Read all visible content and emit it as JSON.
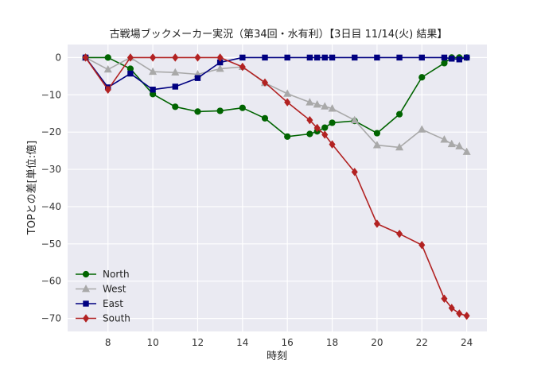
{
  "chart_data": {
    "type": "line",
    "title": "古戦場ブックメーカー実況（第34回・水有利）【3日目 11/14(火) 結果】",
    "xlabel": "時刻",
    "ylabel": "TOPとの差[単位:億]",
    "xlim": [
      6.2,
      24.9
    ],
    "ylim": [
      -73.5,
      3.5
    ],
    "xticks": [
      8,
      10,
      12,
      14,
      16,
      18,
      20,
      22,
      24
    ],
    "yticks": [
      0,
      -10,
      -20,
      -30,
      -40,
      -50,
      -60,
      -70
    ],
    "grid": true,
    "legend_position": "lower-left",
    "series": [
      {
        "name": "North",
        "color": "#006400",
        "marker": "circle",
        "points": [
          [
            7,
            0
          ],
          [
            8,
            0
          ],
          [
            9,
            -3
          ],
          [
            10,
            -9.8
          ],
          [
            11,
            -13.2
          ],
          [
            12,
            -14.5
          ],
          [
            13,
            -14.3
          ],
          [
            14,
            -13.5
          ],
          [
            15,
            -16.3
          ],
          [
            16,
            -21.2
          ],
          [
            17,
            -20.5
          ],
          [
            17.33,
            -19.8
          ],
          [
            17.67,
            -18.8
          ],
          [
            18,
            -17.5
          ],
          [
            19,
            -17
          ],
          [
            20,
            -20.3
          ],
          [
            21,
            -15.2
          ],
          [
            22,
            -5.3
          ],
          [
            23,
            -1.5
          ],
          [
            23.33,
            0
          ],
          [
            23.67,
            0
          ],
          [
            24,
            0
          ]
        ]
      },
      {
        "name": "West",
        "color": "#a9a9a9",
        "marker": "triangle",
        "points": [
          [
            7,
            0
          ],
          [
            8,
            -3.2
          ],
          [
            9,
            0
          ],
          [
            10,
            -3.8
          ],
          [
            11,
            -4
          ],
          [
            12,
            -4.5
          ],
          [
            13,
            -3
          ],
          [
            14,
            -2.5
          ],
          [
            15,
            -6.8
          ],
          [
            16,
            -9.7
          ],
          [
            17,
            -12
          ],
          [
            17.33,
            -12.6
          ],
          [
            17.67,
            -13.1
          ],
          [
            18,
            -13.7
          ],
          [
            19,
            -16.8
          ],
          [
            20,
            -23.5
          ],
          [
            21,
            -24.1
          ],
          [
            22,
            -19.3
          ],
          [
            23,
            -22
          ],
          [
            23.33,
            -23.2
          ],
          [
            23.67,
            -23.8
          ],
          [
            24,
            -25.3
          ]
        ]
      },
      {
        "name": "East",
        "color": "#000080",
        "marker": "square",
        "points": [
          [
            7,
            0
          ],
          [
            8,
            -8
          ],
          [
            9,
            -4.3
          ],
          [
            10,
            -8.6
          ],
          [
            11,
            -7.8
          ],
          [
            12,
            -5.5
          ],
          [
            13,
            -1.3
          ],
          [
            14,
            0
          ],
          [
            15,
            0
          ],
          [
            16,
            0
          ],
          [
            17,
            0
          ],
          [
            17.33,
            0
          ],
          [
            17.67,
            0
          ],
          [
            18,
            0
          ],
          [
            19,
            0
          ],
          [
            20,
            0
          ],
          [
            21,
            0
          ],
          [
            22,
            0
          ],
          [
            23,
            0
          ],
          [
            23.33,
            -0.3
          ],
          [
            23.67,
            -0.5
          ],
          [
            24,
            0
          ]
        ]
      },
      {
        "name": "South",
        "color": "#b22222",
        "marker": "diamond",
        "points": [
          [
            7,
            0
          ],
          [
            8,
            -8.6
          ],
          [
            9,
            0
          ],
          [
            10,
            0
          ],
          [
            11,
            0
          ],
          [
            12,
            0
          ],
          [
            13,
            0
          ],
          [
            14,
            -2.5
          ],
          [
            15,
            -6.7
          ],
          [
            16,
            -12
          ],
          [
            17,
            -16.8
          ],
          [
            17.33,
            -18.9
          ],
          [
            17.67,
            -20.7
          ],
          [
            18,
            -23.3
          ],
          [
            19,
            -30.7
          ],
          [
            20,
            -44.6
          ],
          [
            21,
            -47.3
          ],
          [
            22,
            -50.3
          ],
          [
            23,
            -64.7
          ],
          [
            23.33,
            -67.2
          ],
          [
            23.67,
            -68.7
          ],
          [
            24,
            -69.3
          ]
        ]
      }
    ]
  }
}
